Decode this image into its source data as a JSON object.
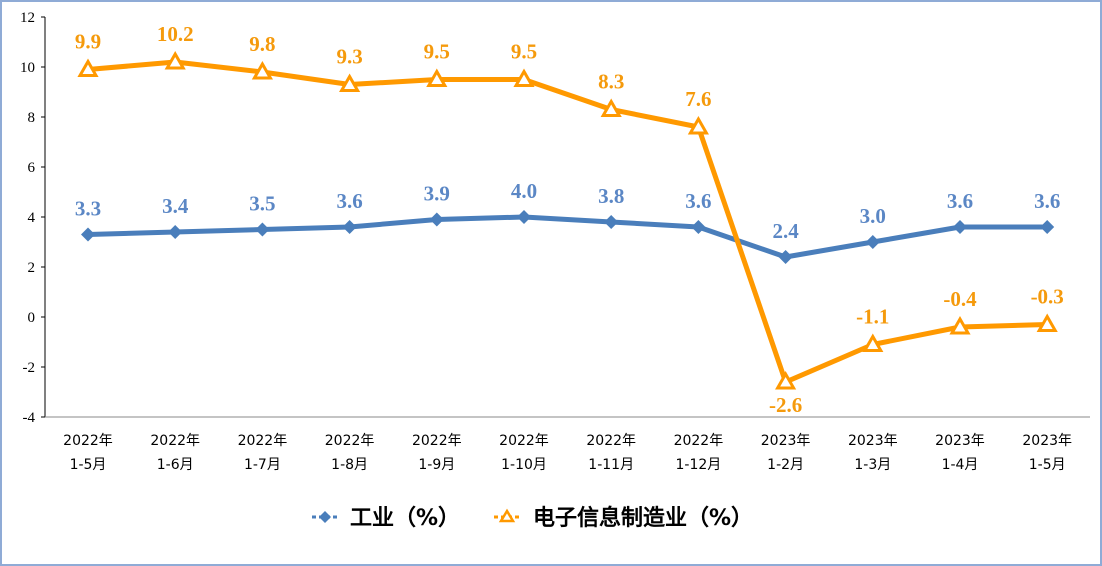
{
  "chart_data": {
    "type": "line",
    "categories": [
      [
        "2022年",
        "1-5月"
      ],
      [
        "2022年",
        "1-6月"
      ],
      [
        "2022年",
        "1-7月"
      ],
      [
        "2022年",
        "1-8月"
      ],
      [
        "2022年",
        "1-9月"
      ],
      [
        "2022年",
        "1-10月"
      ],
      [
        "2022年",
        "1-11月"
      ],
      [
        "2022年",
        "1-12月"
      ],
      [
        "2023年",
        "1-2月"
      ],
      [
        "2023年",
        "1-3月"
      ],
      [
        "2023年",
        "1-4月"
      ],
      [
        "2023年",
        "1-5月"
      ]
    ],
    "series": [
      {
        "name": "工业（%）",
        "color": "#4a7ebb",
        "label_color": "#5b87c5",
        "marker": "diamond",
        "values": [
          3.3,
          3.4,
          3.5,
          3.6,
          3.9,
          4.0,
          3.8,
          3.6,
          2.4,
          3.0,
          3.6,
          3.6
        ]
      },
      {
        "name": "电子信息制造业（%）",
        "color": "#ff9900",
        "label_color": "#f59a0c",
        "marker": "triangle",
        "values": [
          9.9,
          10.2,
          9.8,
          9.3,
          9.5,
          9.5,
          8.3,
          7.6,
          -2.6,
          -1.1,
          -0.4,
          -0.3
        ]
      }
    ],
    "ylim": [
      -4,
      12
    ],
    "yticks": [
      -4,
      -2,
      0,
      2,
      4,
      6,
      8,
      10,
      12
    ],
    "grid": false,
    "legend": "bottom"
  }
}
